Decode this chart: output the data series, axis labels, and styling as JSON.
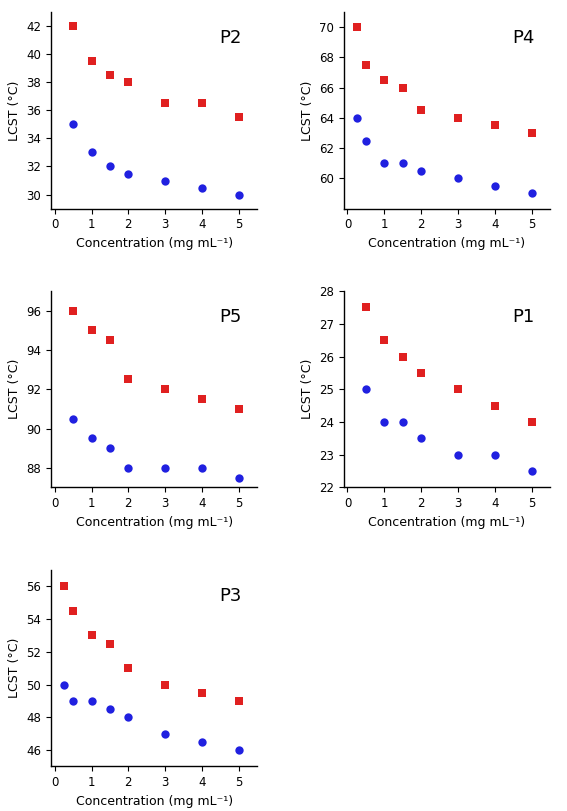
{
  "panels": [
    {
      "label": "P2",
      "red_x": [
        0.5,
        1.0,
        1.5,
        2.0,
        3.0,
        4.0,
        5.0
      ],
      "red_y": [
        42.0,
        39.5,
        38.5,
        38.0,
        36.5,
        36.5,
        35.5
      ],
      "blue_x": [
        0.5,
        1.0,
        1.5,
        2.0,
        3.0,
        4.0,
        5.0
      ],
      "blue_y": [
        35.0,
        33.0,
        32.0,
        31.5,
        31.0,
        30.5,
        30.0
      ],
      "ylim": [
        29,
        43
      ],
      "yticks": [
        30,
        32,
        34,
        36,
        38,
        40,
        42
      ],
      "xlim": [
        -0.1,
        5.5
      ],
      "xticks": [
        0,
        1,
        2,
        3,
        4,
        5
      ],
      "position": "top_left"
    },
    {
      "label": "P4",
      "red_x": [
        0.25,
        0.5,
        1.0,
        1.5,
        2.0,
        3.0,
        4.0,
        5.0
      ],
      "red_y": [
        70.0,
        67.5,
        66.5,
        66.0,
        64.5,
        64.0,
        63.5,
        63.0
      ],
      "blue_x": [
        0.25,
        0.5,
        1.0,
        1.5,
        2.0,
        3.0,
        4.0,
        5.0
      ],
      "blue_y": [
        64.0,
        62.5,
        61.0,
        61.0,
        60.5,
        60.0,
        59.5,
        59.0
      ],
      "ylim": [
        58,
        71
      ],
      "yticks": [
        60,
        62,
        64,
        66,
        68,
        70
      ],
      "xlim": [
        -0.1,
        5.5
      ],
      "xticks": [
        0,
        1,
        2,
        3,
        4,
        5
      ],
      "position": "top_right"
    },
    {
      "label": "P5",
      "red_x": [
        0.5,
        1.0,
        1.5,
        2.0,
        3.0,
        4.0,
        5.0
      ],
      "red_y": [
        96.0,
        95.0,
        94.5,
        92.5,
        92.0,
        91.5,
        91.0
      ],
      "blue_x": [
        0.5,
        1.0,
        1.5,
        2.0,
        3.0,
        4.0,
        5.0
      ],
      "blue_y": [
        90.5,
        89.5,
        89.0,
        88.0,
        88.0,
        88.0,
        87.5
      ],
      "ylim": [
        87,
        97
      ],
      "yticks": [
        88,
        90,
        92,
        94,
        96
      ],
      "xlim": [
        -0.1,
        5.5
      ],
      "xticks": [
        0,
        1,
        2,
        3,
        4,
        5
      ],
      "position": "mid_left"
    },
    {
      "label": "P1",
      "red_x": [
        0.5,
        1.0,
        1.5,
        2.0,
        3.0,
        4.0,
        5.0
      ],
      "red_y": [
        27.5,
        26.5,
        26.0,
        25.5,
        25.0,
        24.5,
        24.0
      ],
      "blue_x": [
        0.5,
        1.0,
        1.5,
        2.0,
        3.0,
        4.0,
        5.0
      ],
      "blue_y": [
        25.0,
        24.0,
        24.0,
        23.5,
        23.0,
        23.0,
        22.5
      ],
      "ylim": [
        22,
        28
      ],
      "yticks": [
        22,
        23,
        24,
        25,
        26,
        27,
        28
      ],
      "xlim": [
        -0.1,
        5.5
      ],
      "xticks": [
        0,
        1,
        2,
        3,
        4,
        5
      ],
      "position": "mid_right"
    },
    {
      "label": "P3",
      "red_x": [
        0.25,
        0.5,
        1.0,
        1.5,
        2.0,
        3.0,
        4.0,
        5.0
      ],
      "red_y": [
        56.0,
        54.5,
        53.0,
        52.5,
        51.0,
        50.0,
        49.5,
        49.0
      ],
      "blue_x": [
        0.25,
        0.5,
        1.0,
        1.5,
        2.0,
        3.0,
        4.0,
        5.0
      ],
      "blue_y": [
        50.0,
        49.0,
        49.0,
        48.5,
        48.0,
        47.0,
        46.5,
        46.0
      ],
      "ylim": [
        45,
        57
      ],
      "yticks": [
        46,
        48,
        50,
        52,
        54,
        56
      ],
      "xlim": [
        -0.1,
        5.5
      ],
      "xticks": [
        0,
        1,
        2,
        3,
        4,
        5
      ],
      "position": "bottom"
    }
  ],
  "red_color": "#e02020",
  "blue_color": "#2020e0",
  "marker_size_sq": 36,
  "marker_size_ci": 36,
  "xlabel": "Concentration (mg mL⁻¹)",
  "ylabel": "LCST (°C)",
  "label_fontsize": 13,
  "axis_fontsize": 9,
  "tick_fontsize": 8.5
}
